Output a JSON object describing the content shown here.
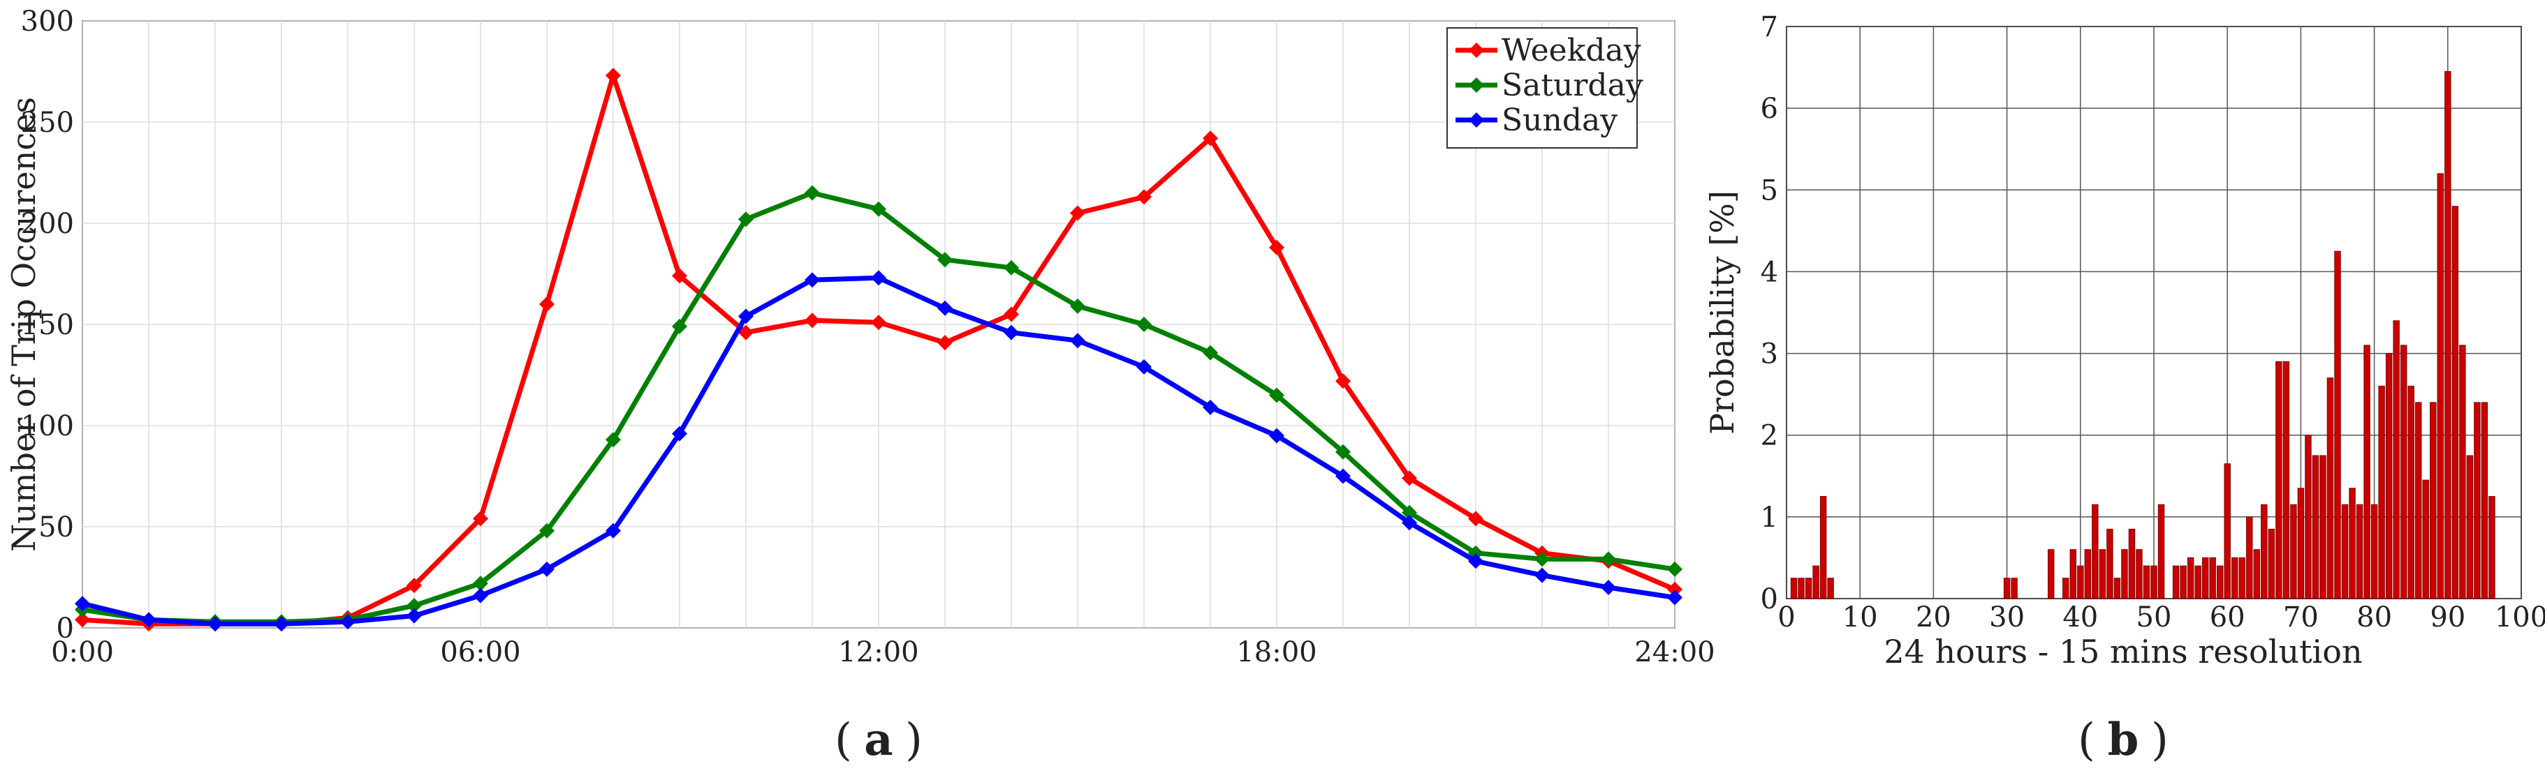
{
  "captions": {
    "a": "a",
    "b": "b"
  },
  "chart_data": [
    {
      "type": "line",
      "title": "",
      "xlabel": "",
      "ylabel": "Number of Trip Occurences",
      "xlim": [
        0,
        24
      ],
      "ylim": [
        0,
        300
      ],
      "xticks": [
        0,
        6,
        12,
        18,
        24
      ],
      "xtick_labels": [
        "0:00",
        "06:00",
        "12:00",
        "18:00",
        "24:00"
      ],
      "yticks": [
        0,
        50,
        100,
        150,
        200,
        250,
        300
      ],
      "ytick_labels": [
        "0",
        "50",
        "100",
        "150",
        "200",
        "250",
        "300"
      ],
      "grid": true,
      "legend": "top-right",
      "x": [
        0,
        1,
        2,
        3,
        4,
        5,
        6,
        7,
        8,
        9,
        10,
        11,
        12,
        13,
        14,
        15,
        16,
        17,
        18,
        19,
        20,
        21,
        22,
        23,
        24
      ],
      "series": [
        {
          "name": "Weekday",
          "color": "#ff0000",
          "values": [
            4,
            2,
            2,
            2,
            5,
            21,
            54,
            160,
            273,
            174,
            146,
            152,
            151,
            141,
            155,
            205,
            213,
            242,
            188,
            122,
            74,
            54,
            37,
            33,
            19
          ]
        },
        {
          "name": "Saturday",
          "color": "#008000",
          "values": [
            9,
            4,
            3,
            3,
            4,
            11,
            22,
            48,
            93,
            149,
            202,
            215,
            207,
            182,
            178,
            159,
            150,
            136,
            115,
            87,
            57,
            37,
            34,
            34,
            29
          ]
        },
        {
          "name": "Sunday",
          "color": "#0000ff",
          "values": [
            12,
            4,
            2,
            2,
            3,
            6,
            16,
            29,
            48,
            96,
            154,
            172,
            173,
            158,
            146,
            142,
            129,
            109,
            95,
            75,
            52,
            33,
            26,
            20,
            15
          ]
        }
      ]
    },
    {
      "type": "bar",
      "title": "",
      "xlabel": "24 hours - 15 mins resolution",
      "ylabel": "Probability [%]",
      "xlim": [
        0,
        100
      ],
      "ylim": [
        0,
        7
      ],
      "xticks": [
        0,
        10,
        20,
        30,
        40,
        50,
        60,
        70,
        80,
        90,
        100
      ],
      "xtick_labels": [
        "0",
        "10",
        "20",
        "30",
        "40",
        "50",
        "60",
        "70",
        "80",
        "90",
        "100"
      ],
      "yticks": [
        0,
        1,
        2,
        3,
        4,
        5,
        6,
        7
      ],
      "ytick_labels": [
        "0",
        "1",
        "2",
        "3",
        "4",
        "5",
        "6",
        "7"
      ],
      "grid": true,
      "bar_color": "#cc0000",
      "x": [
        1,
        2,
        3,
        4,
        5,
        6,
        30,
        31,
        36,
        38,
        39,
        40,
        41,
        42,
        43,
        44,
        45,
        46,
        47,
        48,
        49,
        50,
        51,
        52,
        53,
        54,
        55,
        56,
        57,
        58,
        59,
        60,
        61,
        62,
        63,
        64,
        65,
        66,
        67,
        68,
        69,
        70,
        71,
        72,
        73,
        74,
        75,
        76,
        77,
        78,
        79,
        80,
        81,
        82,
        83,
        84,
        85,
        86,
        87,
        88,
        89,
        90,
        91,
        92,
        93,
        94,
        95,
        96
      ],
      "values": [
        0.25,
        0.25,
        0.25,
        0.4,
        1.25,
        0.25,
        0.25,
        0.25,
        0.6,
        0.25,
        0.6,
        0.4,
        0.6,
        1.15,
        0.6,
        0.85,
        0.25,
        0.6,
        0.85,
        0.6,
        0.4,
        0.4,
        1.15,
        0.0,
        0.4,
        0.4,
        0.5,
        0.4,
        0.5,
        0.5,
        0.4,
        1.65,
        0.5,
        0.5,
        1.0,
        0.6,
        1.15,
        0.85,
        2.9,
        2.9,
        1.15,
        1.35,
        2.0,
        1.75,
        1.75,
        2.7,
        4.25,
        1.15,
        1.35,
        1.15,
        3.1,
        1.15,
        2.6,
        3.0,
        3.4,
        3.1,
        2.6,
        2.4,
        1.45,
        2.4,
        5.2,
        6.45,
        4.8,
        3.1,
        1.75,
        2.4,
        2.4,
        1.25
      ]
    }
  ]
}
